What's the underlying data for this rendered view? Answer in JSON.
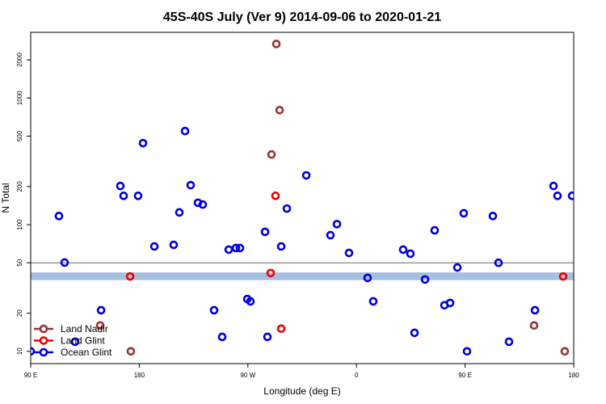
{
  "chart_data": {
    "type": "scatter",
    "title": "45S-40S July (Ver 9)   2014-09-06 to 2020-01-21",
    "x_label": "Longitude (deg E)",
    "y_label": "N Total",
    "log_y": true,
    "xlim": [
      90,
      540
    ],
    "ylim": [
      8,
      3300
    ],
    "xticks": [
      {
        "value": 90,
        "label": "90 E"
      },
      {
        "value": 180,
        "label": "180"
      },
      {
        "value": 270,
        "label": "90 W"
      },
      {
        "value": 360,
        "label": "0"
      },
      {
        "value": 450,
        "label": "90 E"
      },
      {
        "value": 540,
        "label": "180"
      }
    ],
    "yticks": [
      10,
      20,
      50,
      100,
      200,
      500,
      1000,
      2000
    ],
    "hline": 50,
    "band": [
      36.5,
      42
    ],
    "band_color": "#a7bfdf",
    "legend": "lower left",
    "series": [
      {
        "name": "Land Nadir",
        "color": "#993333",
        "x": [
          293.6,
          296.3,
          289.6,
          147.6,
          173,
          507.2,
          532.6
        ],
        "values": [
          2670,
          802,
          358,
          16,
          10,
          16,
          10
        ]
      },
      {
        "name": "Land Glint",
        "color": "#ee0000",
        "x": [
          292.9,
          288.9,
          172.4,
          297.6,
          531.3
        ],
        "values": [
          169,
          41.5,
          39,
          15.1,
          39
        ]
      },
      {
        "name": "Ocean Glint",
        "color": "#0000dd",
        "x": [
          90,
          113.4,
          118.1,
          126.8,
          148.3,
          164.3,
          167,
          179,
          183.1,
          192.5,
          208.5,
          213.2,
          217.9,
          222.6,
          228.6,
          232.6,
          242,
          248.7,
          254.1,
          260.1,
          263.4,
          269.5,
          272.1,
          284.2,
          286.2,
          297.6,
          302.3,
          318.4,
          338.4,
          343.8,
          353.8,
          369.2,
          373.9,
          398.7,
          404.7,
          408.1,
          416.8,
          424.8,
          432.9,
          437.6,
          443.6,
          448.9,
          451.6,
          473,
          477.7,
          486.4,
          507.9,
          523.3,
          526.6,
          538.7
        ],
        "values": [
          10,
          117,
          50.2,
          11.9,
          21.1,
          202,
          169,
          169,
          440,
          67.3,
          69.3,
          125,
          548,
          205,
          149,
          144,
          21.1,
          13,
          63.5,
          65.4,
          65.4,
          25.9,
          24.8,
          87.7,
          13,
          67.3,
          134,
          245,
          82.6,
          101,
          59.8,
          38,
          24.8,
          63.5,
          59,
          14,
          36.9,
          90.2,
          23.1,
          24.1,
          45.9,
          123,
          10,
          117,
          50,
          11.9,
          21.1,
          202,
          169,
          169
        ]
      }
    ]
  }
}
